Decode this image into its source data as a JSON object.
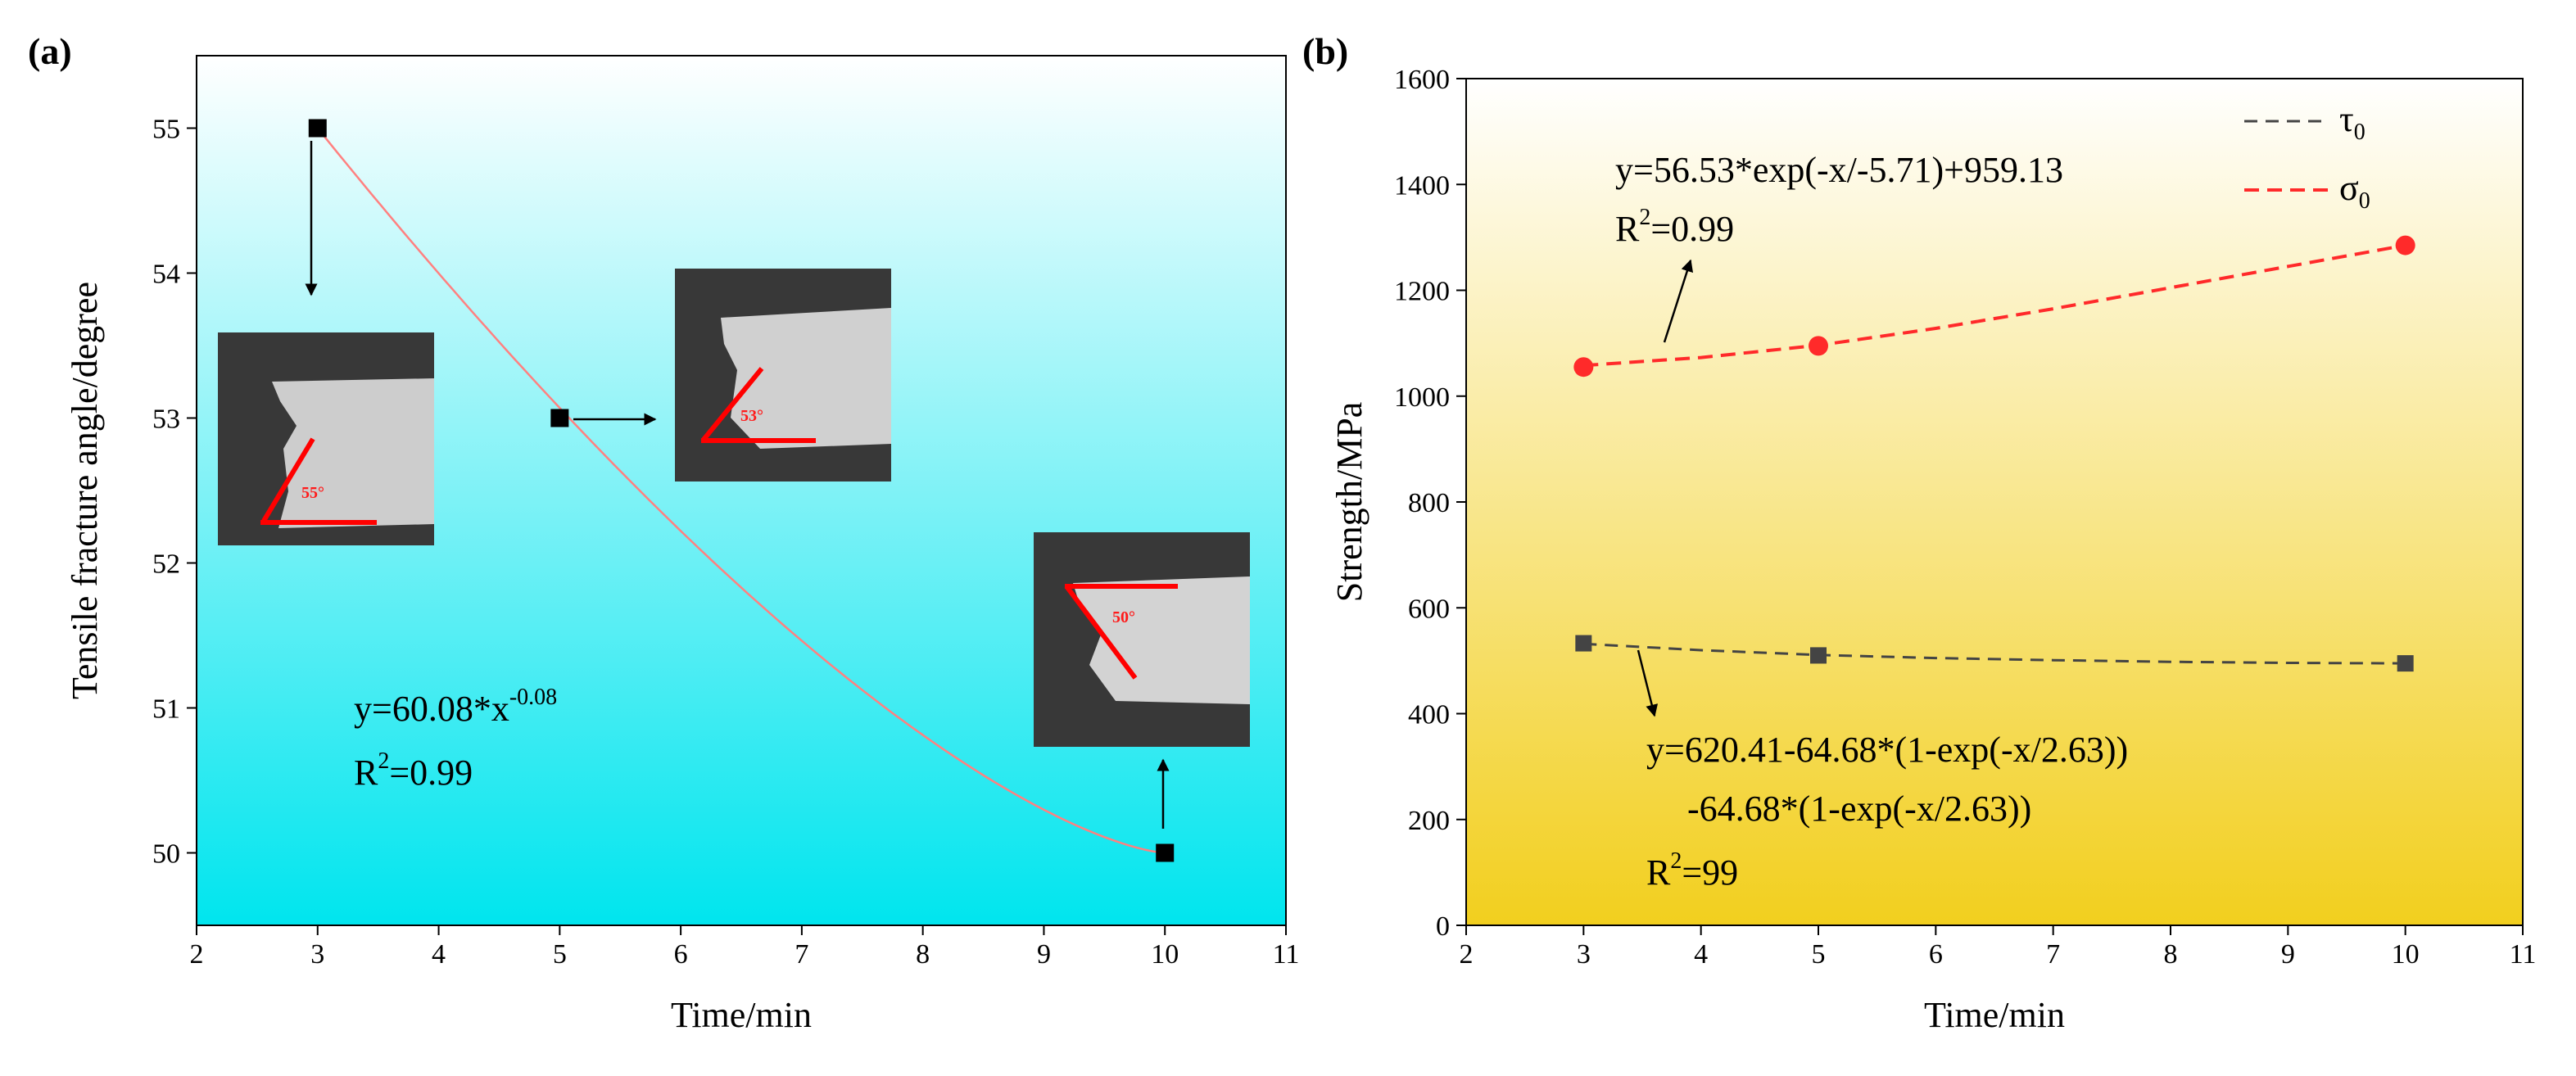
{
  "chart_data": [
    {
      "panel": "(a)",
      "type": "scatter",
      "xlabel": "Time/min",
      "ylabel": "Tensile fracture angle/degree",
      "xlim": [
        2,
        11
      ],
      "ylim": [
        49.5,
        55.5
      ],
      "xticks": [
        2,
        3,
        4,
        5,
        6,
        7,
        8,
        9,
        10,
        11
      ],
      "yticks": [
        50,
        51,
        52,
        53,
        54,
        55
      ],
      "x": [
        3,
        5,
        10
      ],
      "y": [
        55,
        53,
        50
      ],
      "fit": {
        "equation_main": "y=60.08*x",
        "equation_exp": "-0.08",
        "r2_main": "R",
        "r2_sup": "2",
        "r2_rest": "=0.99",
        "a": 60.08,
        "b": -0.08
      },
      "insets": [
        {
          "time": 3,
          "angle_label": "55°"
        },
        {
          "time": 5,
          "angle_label": "53°"
        },
        {
          "time": 10,
          "angle_label": "50°"
        }
      ],
      "colors": {
        "gradient_top": "#ffffff",
        "gradient_bottom": "#00e5ee",
        "fit_line": "#ff8080",
        "marker": "#000000"
      }
    },
    {
      "panel": "(b)",
      "type": "scatter",
      "xlabel": "Time/min",
      "ylabel": "Strength/MPa",
      "xlim": [
        2,
        11
      ],
      "ylim": [
        0,
        1600
      ],
      "xticks": [
        2,
        3,
        4,
        5,
        6,
        7,
        8,
        9,
        10,
        11
      ],
      "yticks": [
        0,
        200,
        400,
        600,
        800,
        1000,
        1200,
        1400,
        1600
      ],
      "series": [
        {
          "name": "τ",
          "sub": "0",
          "x": [
            3,
            5,
            10
          ],
          "values": [
            533,
            510,
            495
          ],
          "marker": "square",
          "color": "#444444",
          "fit_curve": {
            "x": [
              3,
              4,
              5,
              6,
              7,
              8,
              9,
              10
            ],
            "y": [
              532,
              520,
              511,
              505,
              501,
              498,
              496,
              495
            ]
          }
        },
        {
          "name": "σ",
          "sub": "0",
          "x": [
            3,
            5,
            10
          ],
          "values": [
            1055,
            1095,
            1285
          ],
          "marker": "circle",
          "color": "#ff2a2a",
          "fit_curve": {
            "x": [
              3,
              4,
              5,
              6,
              7,
              8,
              9,
              10
            ],
            "y": [
              1058,
              1073,
              1096,
              1128,
              1165,
              1205,
              1245,
              1285
            ]
          }
        }
      ],
      "fits": {
        "sigma_eq": "y=56.53*exp(-x/-5.71)+959.13",
        "sigma_r2_main": "R",
        "sigma_r2_sup": "2",
        "sigma_r2_rest": "=0.99",
        "tau_eq_line1": "y=620.41-64.68*(1-exp(-x/2.63))",
        "tau_eq_line2": "-64.68*(1-exp(-x/2.63))",
        "tau_r2_main": "R",
        "tau_r2_sup": "2",
        "tau_r2_rest": "=99"
      },
      "colors": {
        "gradient_top": "#ffffff",
        "gradient_bottom": "#f2cf1e"
      }
    }
  ]
}
